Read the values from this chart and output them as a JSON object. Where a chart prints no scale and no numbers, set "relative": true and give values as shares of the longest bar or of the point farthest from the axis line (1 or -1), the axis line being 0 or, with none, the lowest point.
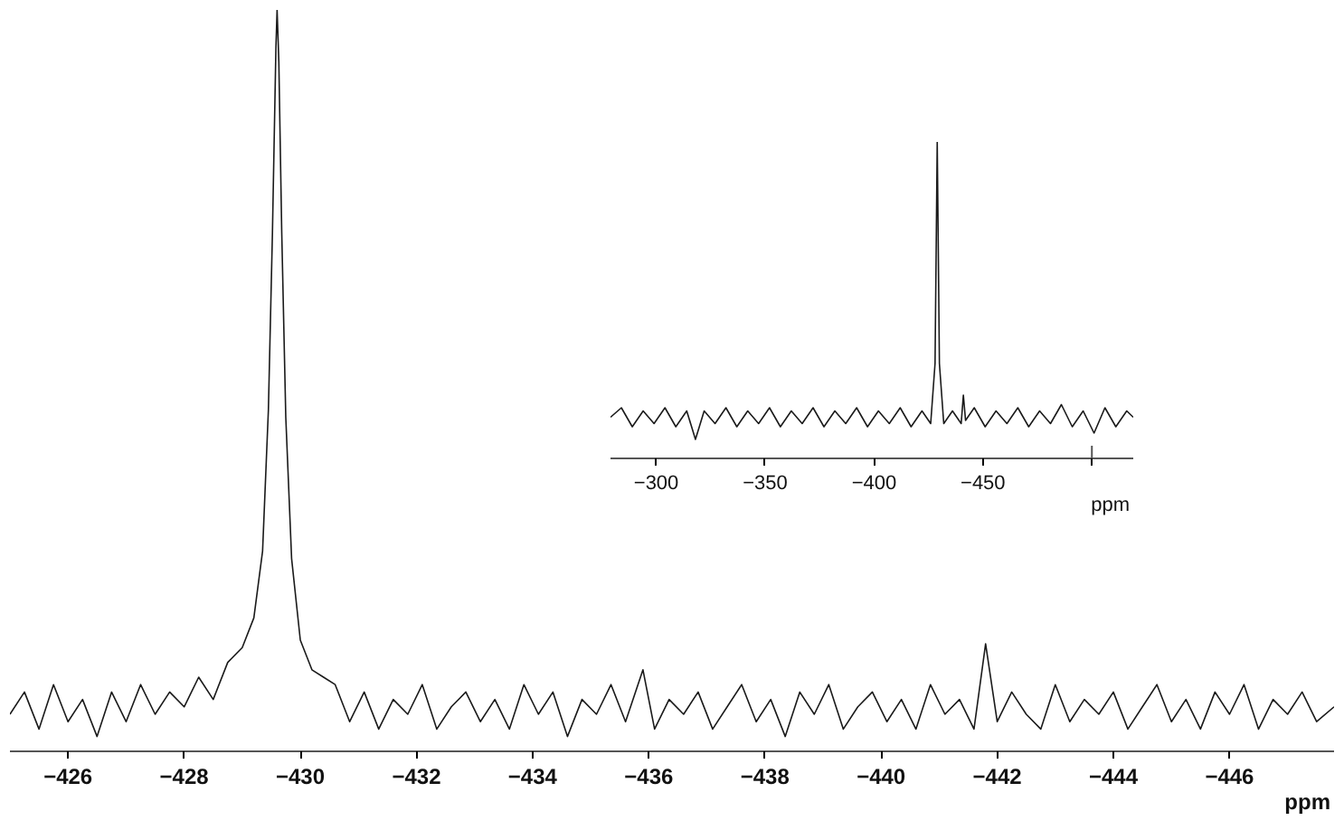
{
  "chart_data": [
    {
      "type": "line",
      "relative": true,
      "xlabel": "ppm",
      "xlim": [
        -425,
        -447.8
      ],
      "xticks": [
        -426,
        -428,
        -430,
        -432,
        -434,
        -436,
        -438,
        -440,
        -442,
        -444,
        -446
      ],
      "grid": false,
      "line_style": "solid",
      "marker": "none",
      "series": [
        {
          "color": "#1a1a1a",
          "x": [
            -425.0,
            -425.25,
            -425.5,
            -425.75,
            -426.0,
            -426.25,
            -426.5,
            -426.75,
            -427.0,
            -427.25,
            -427.5,
            -427.75,
            -428.0,
            -428.25,
            -428.5,
            -428.75,
            -429.0,
            -429.2,
            -429.35,
            -429.45,
            -429.52,
            -429.58,
            -429.6,
            -429.63,
            -429.68,
            -429.75,
            -429.85,
            -430.0,
            -430.2,
            -430.4,
            -430.6,
            -430.85,
            -431.1,
            -431.35,
            -431.6,
            -431.85,
            -432.1,
            -432.35,
            -432.6,
            -432.85,
            -433.1,
            -433.35,
            -433.6,
            -433.85,
            -434.1,
            -434.35,
            -434.6,
            -434.85,
            -435.1,
            -435.35,
            -435.6,
            -435.9,
            -436.1,
            -436.35,
            -436.6,
            -436.85,
            -437.1,
            -437.35,
            -437.6,
            -437.85,
            -438.1,
            -438.35,
            -438.6,
            -438.85,
            -439.1,
            -439.35,
            -439.6,
            -439.85,
            -440.1,
            -440.35,
            -440.6,
            -440.85,
            -441.1,
            -441.35,
            -441.6,
            -441.8,
            -442.0,
            -442.25,
            -442.5,
            -442.75,
            -443.0,
            -443.25,
            -443.5,
            -443.75,
            -444.0,
            -444.25,
            -444.5,
            -444.75,
            -445.0,
            -445.25,
            -445.5,
            -445.75,
            -446.0,
            -446.25,
            -446.5,
            -446.75,
            -447.0,
            -447.25,
            -447.5,
            -447.8
          ],
          "values": [
            0.05,
            0.08,
            0.03,
            0.09,
            0.04,
            0.07,
            0.02,
            0.08,
            0.04,
            0.09,
            0.05,
            0.08,
            0.06,
            0.1,
            0.07,
            0.12,
            0.14,
            0.18,
            0.27,
            0.46,
            0.7,
            0.95,
            1.0,
            0.93,
            0.7,
            0.45,
            0.26,
            0.15,
            0.11,
            0.1,
            0.09,
            0.04,
            0.08,
            0.03,
            0.07,
            0.05,
            0.09,
            0.03,
            0.06,
            0.08,
            0.04,
            0.07,
            0.03,
            0.09,
            0.05,
            0.08,
            0.02,
            0.07,
            0.05,
            0.09,
            0.04,
            0.11,
            0.03,
            0.07,
            0.05,
            0.08,
            0.03,
            0.06,
            0.09,
            0.04,
            0.07,
            0.02,
            0.08,
            0.05,
            0.09,
            0.03,
            0.06,
            0.08,
            0.04,
            0.07,
            0.03,
            0.09,
            0.05,
            0.07,
            0.03,
            0.145,
            0.04,
            0.08,
            0.05,
            0.03,
            0.09,
            0.04,
            0.07,
            0.05,
            0.08,
            0.03,
            0.06,
            0.09,
            0.04,
            0.07,
            0.03,
            0.08,
            0.05,
            0.09,
            0.03,
            0.07,
            0.05,
            0.08,
            0.04,
            0.06
          ]
        }
      ]
    },
    {
      "type": "line",
      "relative": true,
      "xlabel": "ppm",
      "xlim": [
        -279,
        -519
      ],
      "xticks": [
        -300,
        -350,
        -400,
        -450,
        {
          "value": -500,
          "label": null
        }
      ],
      "grid": false,
      "line_style": "solid",
      "marker": "none",
      "series": [
        {
          "color": "#1a1a1a",
          "x": [
            -279,
            -284,
            -289,
            -294,
            -299,
            -304,
            -309,
            -314,
            -318,
            -322,
            -327,
            -332,
            -337,
            -342,
            -347,
            -352,
            -357,
            -362,
            -367,
            -372,
            -377,
            -382,
            -387,
            -392,
            -397,
            -402,
            -407,
            -412,
            -417,
            -422,
            -426,
            -428,
            -429,
            -430,
            -432,
            -436,
            -440,
            -441,
            -442,
            -446,
            -451,
            -456,
            -461,
            -466,
            -471,
            -476,
            -481,
            -486,
            -491,
            -496,
            -501,
            -506,
            -511,
            -516,
            -519
          ],
          "values": [
            0.13,
            0.16,
            0.1,
            0.15,
            0.11,
            0.16,
            0.1,
            0.15,
            0.06,
            0.15,
            0.11,
            0.16,
            0.1,
            0.15,
            0.11,
            0.16,
            0.1,
            0.15,
            0.11,
            0.16,
            0.1,
            0.15,
            0.11,
            0.16,
            0.1,
            0.15,
            0.11,
            0.16,
            0.1,
            0.15,
            0.11,
            0.3,
            1.0,
            0.3,
            0.11,
            0.15,
            0.11,
            0.2,
            0.12,
            0.16,
            0.1,
            0.15,
            0.11,
            0.16,
            0.1,
            0.15,
            0.11,
            0.17,
            0.1,
            0.15,
            0.08,
            0.16,
            0.1,
            0.15,
            0.13
          ]
        }
      ]
    }
  ]
}
